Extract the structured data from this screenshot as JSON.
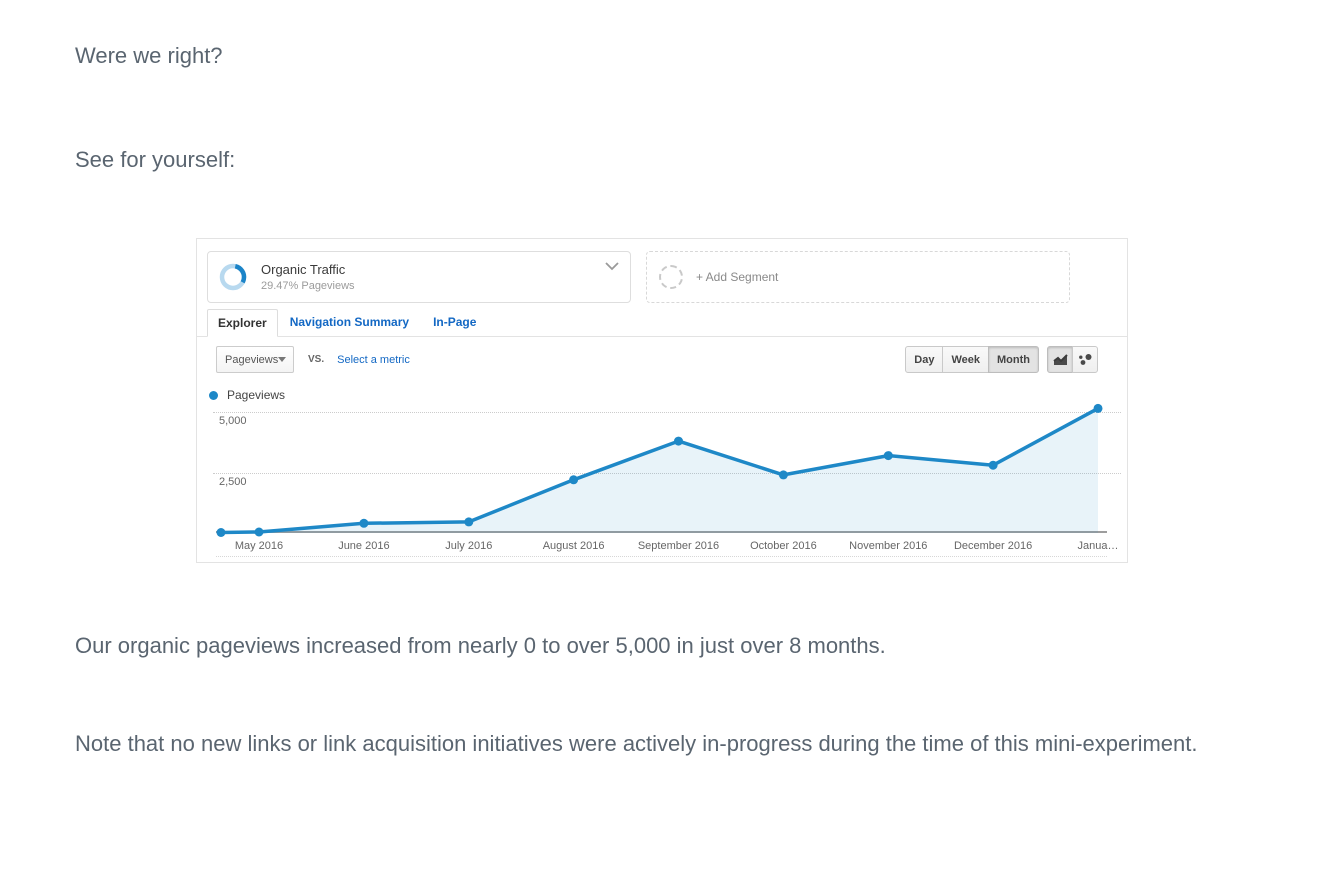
{
  "article": {
    "paragraphs": [
      "Were we right?",
      "See for yourself:",
      "Our organic pageviews increased from nearly 0 to over 5,000 in just over 8 months.",
      "Note that no new links or link acquisition initiatives were actively in-progress during the time of this mini-experiment."
    ]
  },
  "analytics": {
    "segment": {
      "name": "Organic Traffic",
      "detail": "29.47% Pageviews",
      "add_label": "+ Add Segment"
    },
    "tabs": [
      "Explorer",
      "Navigation Summary",
      "In-Page"
    ],
    "active_tab": "Explorer",
    "toolbar": {
      "metric": "Pageviews",
      "vs": "VS.",
      "select_metric": "Select a metric",
      "granularity": [
        "Day",
        "Week",
        "Month"
      ],
      "granularity_active": "Month",
      "view_buttons": [
        "line-chart",
        "motion-chart"
      ],
      "view_active": "line-chart"
    }
  },
  "chart_data": {
    "type": "line",
    "title": "",
    "xlabel": "",
    "ylabel": "",
    "ylim": [
      0,
      5290
    ],
    "grid": "dotted-horizontal",
    "legend_position": "top-left",
    "yticks": [
      {
        "value": 5000,
        "label": "5,000"
      },
      {
        "value": 2500,
        "label": "2,500"
      }
    ],
    "series": [
      {
        "name": "Pageviews",
        "color": "#1e88c7",
        "fill": "rgba(30,136,199,0.10)",
        "points": [
          {
            "label": "",
            "value": 20
          },
          {
            "label": "May 2016",
            "value": 40
          },
          {
            "label": "June 2016",
            "value": 400
          },
          {
            "label": "July 2016",
            "value": 460
          },
          {
            "label": "August 2016",
            "value": 2200
          },
          {
            "label": "September 2016",
            "value": 3800
          },
          {
            "label": "October 2016",
            "value": 2400
          },
          {
            "label": "November 2016",
            "value": 3200
          },
          {
            "label": "December 2016",
            "value": 2800
          },
          {
            "label": "Janua…",
            "value": 5150
          }
        ]
      }
    ]
  },
  "colors": {
    "accent_blue": "#1e88c7",
    "link_blue": "#1368c4",
    "body_text": "#5a6570",
    "axis_text": "#666666"
  }
}
